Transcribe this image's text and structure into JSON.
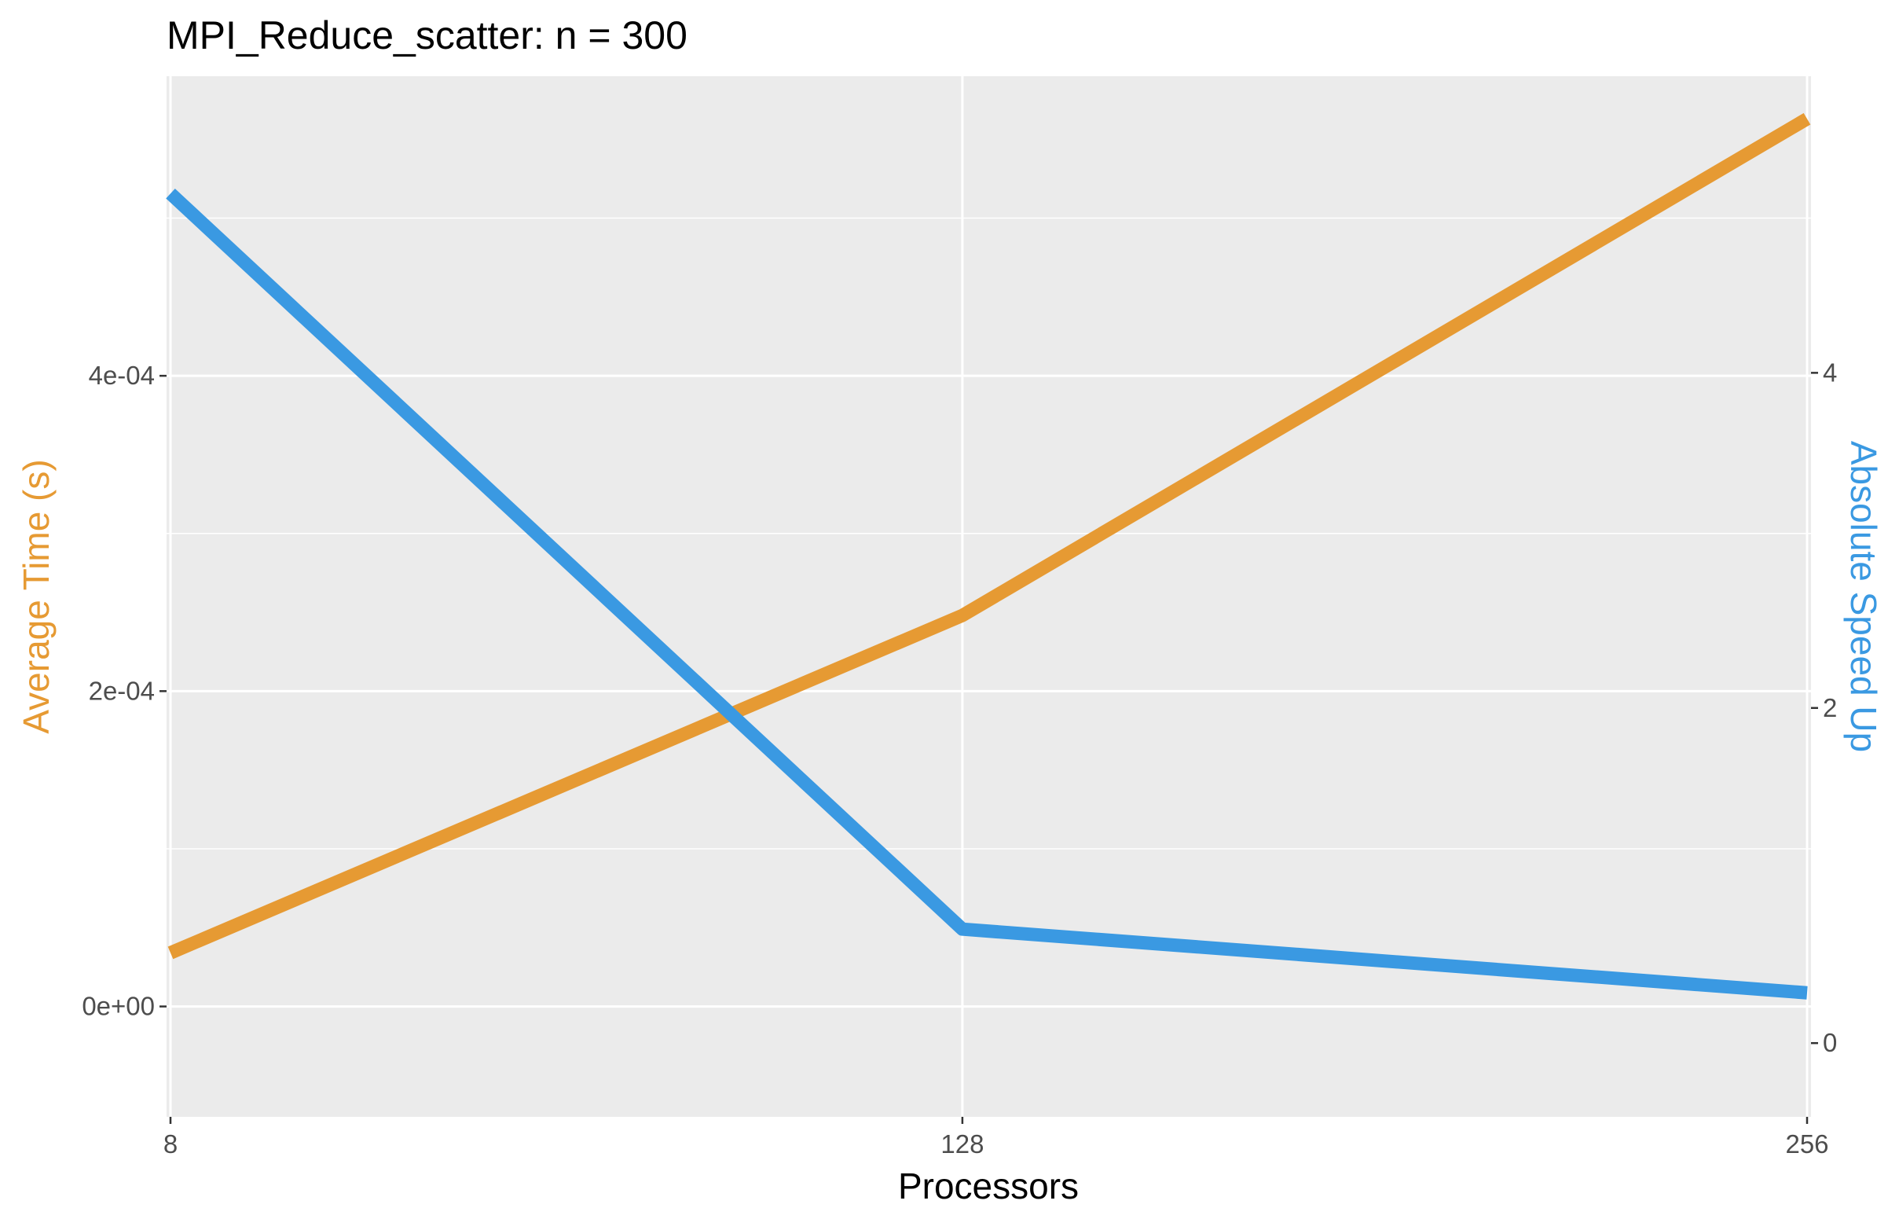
{
  "chart_data": {
    "type": "line",
    "title": "MPI_Reduce_scatter: n = 300",
    "xlabel": "Processors",
    "ylabel": "Average Time (s)",
    "y2label": "Absolute Speed Up",
    "x": [
      8,
      128,
      256
    ],
    "x_ticks": [
      "8",
      "128",
      "256"
    ],
    "ylim": [
      -7e-05,
      0.00059
    ],
    "y2lim": [
      -0.44,
      5.77
    ],
    "y_ticks": [
      {
        "value": 0.0,
        "label": "0e+00"
      },
      {
        "value": 0.0002,
        "label": "2e-04"
      },
      {
        "value": 0.0004,
        "label": "4e-04"
      }
    ],
    "y2_ticks": [
      {
        "value": 0,
        "label": "0"
      },
      {
        "value": 2,
        "label": "2"
      },
      {
        "value": 4,
        "label": "4"
      }
    ],
    "series": [
      {
        "axis": "left",
        "color": "#E69A33",
        "values": [
          3.4e-05,
          0.000248,
          0.000563
        ]
      },
      {
        "axis": "right",
        "color": "#3A99E2",
        "values": [
          5.07,
          0.68,
          0.3
        ]
      }
    ],
    "grid": true,
    "background": "#EBEBEB",
    "grid_color": "#FFFFFF",
    "ylabel_color": "#E69A33",
    "y2label_color": "#3A99E2"
  }
}
